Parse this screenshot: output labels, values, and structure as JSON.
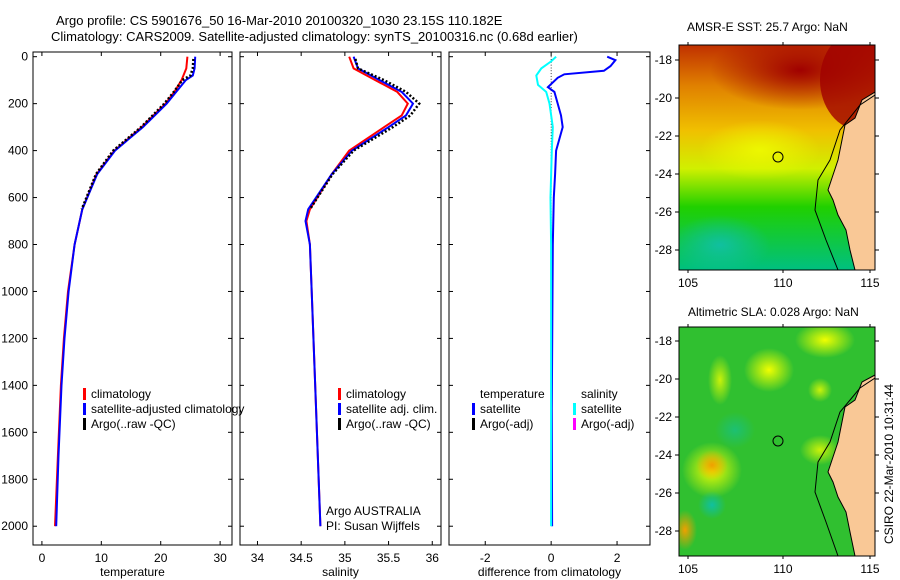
{
  "title_line1": "Argo profile: CS 5901676_50 16-Mar-2010 20100320_1030 23.15S 110.182E",
  "title_line2": "Climatology: CARS2009. Satellite-adjusted climatology: synTS_20100316.nc (0.68d earlier)",
  "credit": "CSIRO 22-Mar-2010 10:31:44",
  "colors": {
    "climatology": "#ff0000",
    "satellite": "#0000ff",
    "argo": "#000000",
    "sal_satellite": "#00ffff",
    "sal_argo": "#ff00ff",
    "land": "#f9c896"
  },
  "chart_data": [
    {
      "type": "line",
      "xlabel": "temperature",
      "ylabel": "",
      "xlim": [
        -1.5,
        32
      ],
      "ylim": [
        2080,
        -20
      ],
      "xticks": [
        "0",
        "10",
        "20",
        "30"
      ],
      "xtick_values": [
        0,
        10,
        20,
        30
      ],
      "yticks": [
        "0",
        "200",
        "400",
        "600",
        "800",
        "1000",
        "1200",
        "1400",
        "1600",
        "1800",
        "2000"
      ],
      "ytick_values": [
        0,
        200,
        400,
        600,
        800,
        1000,
        1200,
        1400,
        1600,
        1800,
        2000
      ],
      "legend": [
        "climatology",
        "satellite-adjusted climatology",
        "Argo(..raw -QC)"
      ],
      "legend_placement": "lower-center",
      "series": [
        {
          "name": "climatology",
          "color": "#ff0000",
          "depth": [
            0,
            50,
            100,
            150,
            200,
            300,
            400,
            500,
            650,
            800,
            1000,
            1200,
            1400,
            1700,
            2000
          ],
          "values": [
            24.5,
            24.3,
            23.5,
            22.3,
            20.8,
            16.8,
            12.2,
            9.2,
            6.8,
            5.5,
            4.4,
            3.7,
            3.2,
            2.7,
            2.2
          ]
        },
        {
          "name": "satellite-adjusted climatology",
          "color": "#0000ff",
          "depth": [
            0,
            50,
            80,
            100,
            150,
            200,
            300,
            400,
            500,
            650,
            800,
            1000,
            1200,
            1400,
            1700,
            2000
          ],
          "values": [
            25.8,
            25.7,
            25.4,
            24.2,
            22.6,
            21.0,
            17.0,
            12.3,
            9.3,
            6.8,
            5.5,
            4.5,
            3.8,
            3.3,
            2.8,
            2.4
          ]
        },
        {
          "name": "Argo(..raw -QC)",
          "color": "#000000",
          "depth": [
            10,
            50,
            80,
            100,
            130,
            150,
            200,
            300,
            400,
            500,
            650
          ],
          "values": [
            25.5,
            25.4,
            25.0,
            23.6,
            22.8,
            22.2,
            20.6,
            16.7,
            12.0,
            9.1,
            6.7
          ]
        }
      ]
    },
    {
      "type": "line",
      "xlabel": "salinity",
      "xlim": [
        33.8,
        36.1
      ],
      "ylim": [
        2080,
        -20
      ],
      "xticks": [
        "34",
        "34.5",
        "35",
        "35.5",
        "36"
      ],
      "xtick_values": [
        34,
        34.5,
        35,
        35.5,
        36
      ],
      "legend": [
        "climatology",
        "satellite adj. clim.",
        "Argo(..raw -QC)"
      ],
      "legend_placement": "lower-center",
      "annotation": [
        "Argo AUSTRALIA",
        "PI: Susan Wijffels"
      ],
      "series": [
        {
          "name": "climatology",
          "color": "#ff0000",
          "depth": [
            0,
            50,
            100,
            150,
            200,
            250,
            300,
            400,
            500,
            650,
            700,
            800,
            1000,
            1400,
            2000
          ],
          "values": [
            35.05,
            35.1,
            35.35,
            35.6,
            35.72,
            35.65,
            35.45,
            35.05,
            34.85,
            34.6,
            34.56,
            34.6,
            34.62,
            34.66,
            34.72
          ]
        },
        {
          "name": "satellite adj. clim.",
          "color": "#0000ff",
          "depth": [
            0,
            50,
            100,
            150,
            200,
            250,
            300,
            400,
            500,
            650,
            700,
            800,
            1000,
            1400,
            2000
          ],
          "values": [
            35.1,
            35.15,
            35.4,
            35.65,
            35.78,
            35.7,
            35.5,
            35.08,
            34.85,
            34.58,
            34.55,
            34.6,
            34.62,
            34.66,
            34.72
          ]
        },
        {
          "name": "Argo(..raw -QC)",
          "color": "#000000",
          "depth": [
            10,
            50,
            100,
            150,
            200,
            250,
            300,
            400,
            500,
            650
          ],
          "values": [
            35.12,
            35.15,
            35.45,
            35.7,
            35.85,
            35.75,
            35.55,
            35.1,
            34.86,
            34.6
          ]
        }
      ]
    },
    {
      "type": "line",
      "xlabel": "difference from climatology",
      "xlim": [
        -3.1,
        3.0
      ],
      "ylim": [
        2080,
        -20
      ],
      "xticks": [
        "-2",
        "0",
        "2"
      ],
      "xtick_values": [
        -2,
        0,
        2
      ],
      "legend_groups": [
        {
          "title": "temperature",
          "items": [
            "satellite",
            "Argo(-adj)"
          ]
        },
        {
          "title": "salinity",
          "items": [
            "satellite",
            "Argo(-adj)"
          ]
        }
      ],
      "series": [
        {
          "name": "temperature satellite",
          "color": "#0000ff",
          "depth": [
            0,
            15,
            40,
            60,
            75,
            90,
            130,
            150,
            200,
            250,
            300,
            350,
            400,
            500,
            600,
            800,
            1000,
            1500,
            2000
          ],
          "values": [
            1.7,
            1.95,
            1.8,
            1.6,
            0.4,
            0.2,
            -0.1,
            0.1,
            0.2,
            0.3,
            0.35,
            0.25,
            0.15,
            0.12,
            0.08,
            0.05,
            0.04,
            0.02,
            0.03
          ]
        },
        {
          "name": "salinity satellite",
          "color": "#00ffff",
          "depth": [
            0,
            20,
            50,
            80,
            120,
            150,
            200,
            300,
            400,
            600,
            800,
            1000,
            1500,
            2000
          ],
          "values": [
            0.15,
            0.0,
            -0.3,
            -0.45,
            -0.4,
            -0.15,
            -0.05,
            0.05,
            0.02,
            -0.02,
            0.0,
            0.0,
            0.0,
            0.0
          ]
        }
      ]
    }
  ],
  "maps": [
    {
      "title": "AMSR-E SST: 25.7 Argo: NaN",
      "xticks": [
        "105",
        "110",
        "115"
      ],
      "yticks": [
        "-18",
        "-20",
        "-22",
        "-24",
        "-26",
        "-28"
      ]
    },
    {
      "title": "Altimetric SLA: 0.028 Argo: NaN",
      "xticks": [
        "105",
        "110",
        "115"
      ],
      "yticks": [
        "-18",
        "-20",
        "-22",
        "-24",
        "-26",
        "-28"
      ]
    }
  ]
}
